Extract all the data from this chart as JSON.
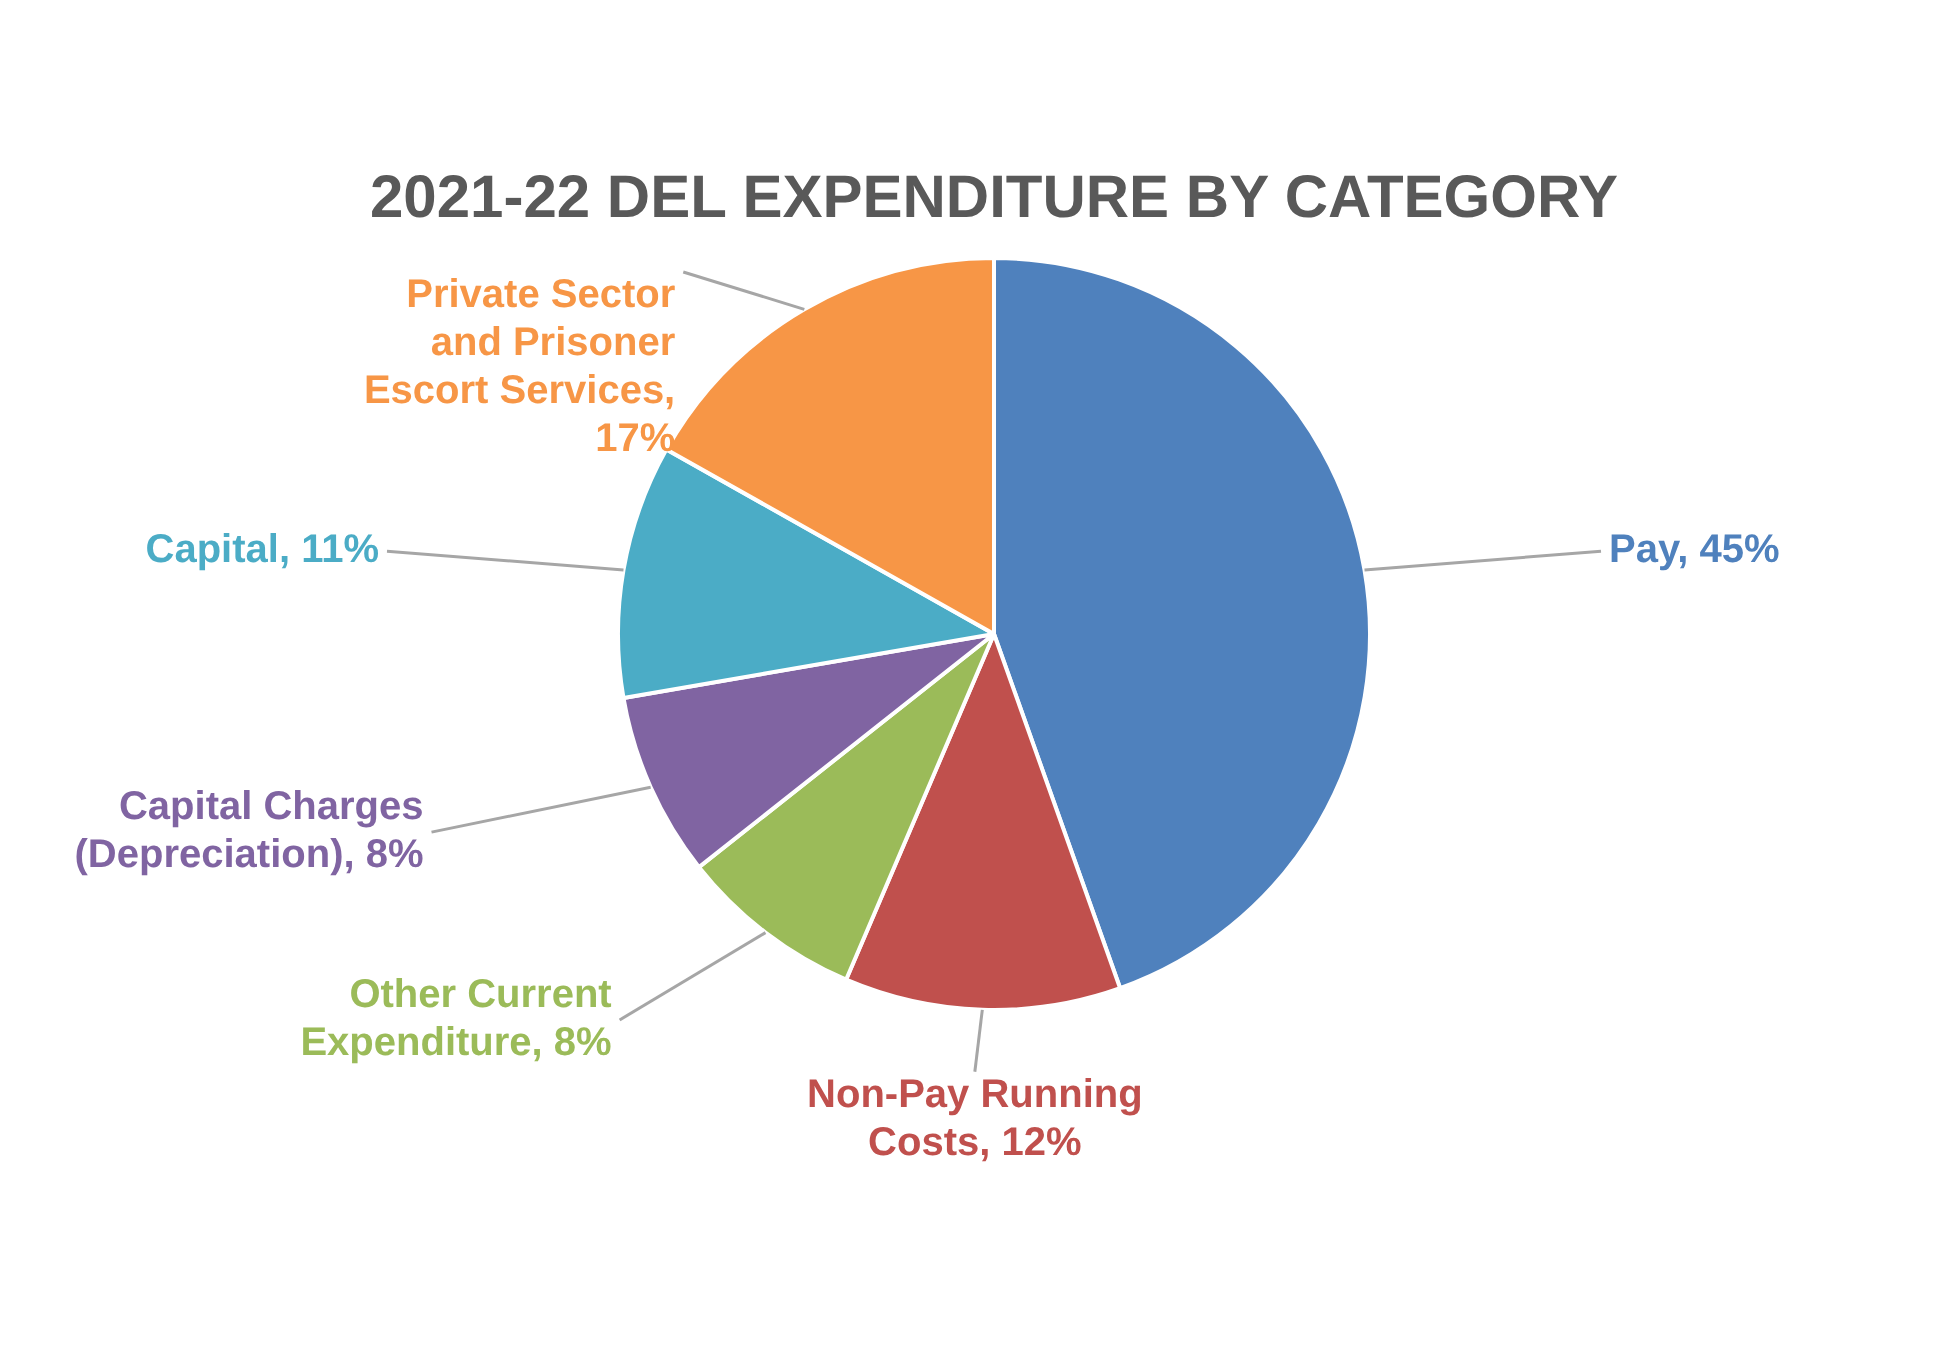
{
  "chart_data": {
    "type": "pie",
    "title": "2021-22 DEL EXPENDITURE BY CATEGORY",
    "categories": [
      "Pay",
      "Non-Pay Running Costs",
      "Other Current Expenditure",
      "Capital Charges (Depreciation)",
      "Capital",
      "Private Sector and Prisoner Escort Services"
    ],
    "values": [
      45,
      12,
      8,
      8,
      11,
      17
    ],
    "value_labels": [
      ", 45%",
      ", 12%",
      ", 8%",
      ", 8%",
      ", 11%",
      ", 17%"
    ],
    "colors": [
      "#4f81bd",
      "#c0504d",
      "#9bbb59",
      "#8064a2",
      "#4bacc6",
      "#f79646"
    ],
    "legend": false
  }
}
